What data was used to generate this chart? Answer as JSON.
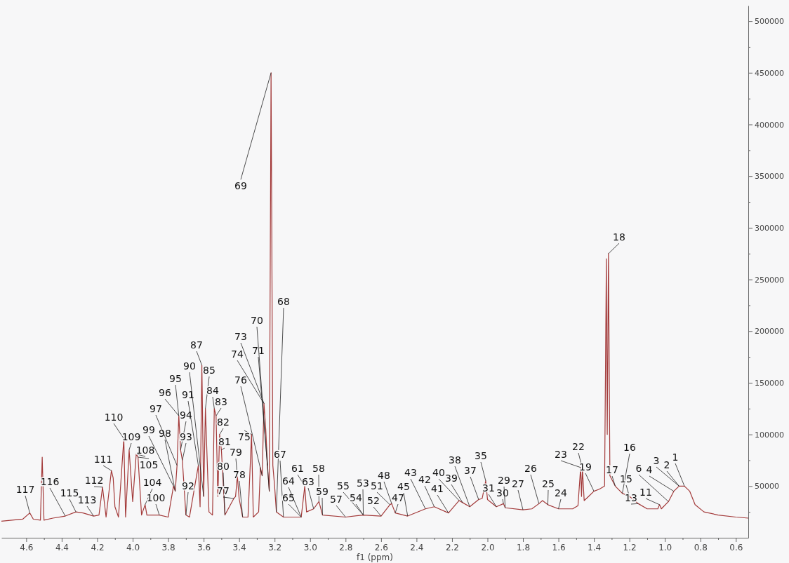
{
  "chart_data": {
    "type": "line",
    "xlabel": "f1 (ppm)",
    "grid": false,
    "marker": "none",
    "line_style": "solid",
    "xlim": [
      4.74,
      0.53
    ],
    "ylim": [
      0,
      515000
    ],
    "xticks": [
      4.6,
      {
        "value": 4.5,
        "label": null
      },
      4.4,
      {
        "value": 4.3,
        "label": null
      },
      4.2,
      {
        "value": 4.1,
        "label": null
      },
      {
        "value": 4,
        "label": "4.0"
      },
      {
        "value": 3.9,
        "label": null
      },
      3.8,
      {
        "value": 3.7,
        "label": null
      },
      3.6,
      {
        "value": 3.5,
        "label": null
      },
      3.4,
      {
        "value": 3.3,
        "label": null
      },
      3.2,
      {
        "value": 3.1,
        "label": null
      },
      {
        "value": 3,
        "label": "3.0"
      },
      {
        "value": 2.9,
        "label": null
      },
      2.8,
      {
        "value": 2.7,
        "label": null
      },
      2.6,
      {
        "value": 2.5,
        "label": null
      },
      2.4,
      {
        "value": 2.3,
        "label": null
      },
      2.2,
      {
        "value": 2.1,
        "label": null
      },
      {
        "value": 2,
        "label": "2.0"
      },
      {
        "value": 1.9,
        "label": null
      },
      1.8,
      {
        "value": 1.7,
        "label": null
      },
      1.6,
      {
        "value": 1.5,
        "label": null
      },
      1.4,
      {
        "value": 1.3,
        "label": null
      },
      1.2,
      {
        "value": 1.1,
        "label": null
      },
      {
        "value": 1,
        "label": "1.0"
      },
      {
        "value": 0.9,
        "label": null
      },
      0.8,
      {
        "value": 0.7,
        "label": null
      },
      0.6
    ],
    "yticks": [
      {
        "value": 25000,
        "label": null
      },
      50000,
      {
        "value": 75000,
        "label": null
      },
      100000,
      {
        "value": 125000,
        "label": null
      },
      150000,
      {
        "value": 175000,
        "label": null
      },
      200000,
      {
        "value": 225000,
        "label": null
      },
      250000,
      {
        "value": 275000,
        "label": null
      },
      300000,
      {
        "value": 325000,
        "label": null
      },
      350000,
      {
        "value": 375000,
        "label": null
      },
      400000,
      {
        "value": 425000,
        "label": null
      },
      450000,
      {
        "value": 475000,
        "label": null
      },
      500000
    ],
    "series": [
      {
        "color": "#a33a3a",
        "x": [
          4.74,
          4.62,
          4.58,
          4.56,
          4.52,
          4.51,
          4.5,
          4.45,
          4.38,
          4.32,
          4.28,
          4.22,
          4.19,
          4.17,
          4.15,
          4.12,
          4.11,
          4.1,
          4.08,
          4.05,
          4.04,
          4.02,
          4.0,
          3.98,
          3.97,
          3.95,
          3.93,
          3.92,
          3.85,
          3.8,
          3.77,
          3.76,
          3.75,
          3.74,
          3.73,
          3.72,
          3.7,
          3.68,
          3.63,
          3.62,
          3.61,
          3.6,
          3.59,
          3.57,
          3.55,
          3.54,
          3.53,
          3.52,
          3.51,
          3.5,
          3.48,
          3.43,
          3.42,
          3.41,
          3.4,
          3.38,
          3.35,
          3.33,
          3.32,
          3.29,
          3.28,
          3.27,
          3.26,
          3.25,
          3.24,
          3.23,
          3.22,
          3.21,
          3.2,
          3.19,
          3.15,
          3.05,
          3.03,
          3.02,
          2.98,
          2.95,
          2.93,
          2.8,
          2.7,
          2.6,
          2.55,
          2.54,
          2.52,
          2.45,
          2.35,
          2.3,
          2.22,
          2.16,
          2.14,
          2.1,
          2.05,
          2.03,
          2.01,
          2.0,
          1.95,
          1.91,
          1.9,
          1.8,
          1.75,
          1.71,
          1.69,
          1.66,
          1.6,
          1.52,
          1.49,
          1.475,
          1.47,
          1.465,
          1.455,
          1.43,
          1.4,
          1.37,
          1.34,
          1.33,
          1.325,
          1.318,
          1.31,
          1.28,
          1.24,
          1.2,
          1.15,
          1.1,
          1.04,
          1.03,
          1.02,
          0.98,
          0.95,
          0.92,
          0.89,
          0.86,
          0.83,
          0.78,
          0.7,
          0.6,
          0.53
        ],
        "values": [
          16000,
          18000,
          24000,
          18000,
          17000,
          78000,
          17000,
          19000,
          21000,
          25000,
          24000,
          21000,
          22000,
          49000,
          20000,
          65000,
          58000,
          30000,
          20000,
          96000,
          20000,
          85000,
          35000,
          81000,
          78000,
          22000,
          32000,
          22000,
          22000,
          20000,
          50000,
          45000,
          70000,
          118000,
          85000,
          75000,
          22000,
          20000,
          70000,
          30000,
          167000,
          40000,
          125000,
          25000,
          22000,
          125000,
          118000,
          40000,
          100000,
          85000,
          22000,
          38000,
          40000,
          60000,
          38000,
          20000,
          20000,
          100000,
          20000,
          25000,
          68000,
          60000,
          130000,
          105000,
          70000,
          45000,
          450000,
          70000,
          50000,
          25000,
          20000,
          20000,
          50000,
          25000,
          28000,
          35000,
          22000,
          20000,
          22000,
          21000,
          32000,
          33000,
          24000,
          21000,
          28000,
          30000,
          24000,
          36000,
          34000,
          30000,
          37000,
          38000,
          55000,
          37000,
          30000,
          33000,
          29000,
          27000,
          28000,
          33000,
          36000,
          32000,
          28000,
          28000,
          31000,
          68000,
          40000,
          67000,
          36000,
          40000,
          45000,
          47000,
          50000,
          270000,
          100000,
          275000,
          60000,
          50000,
          43000,
          40000,
          33000,
          28000,
          28000,
          32000,
          28000,
          35000,
          45000,
          50000,
          50000,
          45000,
          32000,
          25000,
          22000,
          20000,
          19000
        ]
      }
    ],
    "annotations": [
      {
        "text": "117",
        "x": 4.58,
        "y": 24000
      },
      {
        "text": "116",
        "x": 4.38,
        "y": 21000
      },
      {
        "text": "115",
        "x": 4.32,
        "y": 25000
      },
      {
        "text": "113",
        "x": 4.22,
        "y": 21000
      },
      {
        "text": "112",
        "x": 4.17,
        "y": 49000
      },
      {
        "text": "111",
        "x": 4.12,
        "y": 65000
      },
      {
        "text": "110",
        "x": 4.05,
        "y": 96000
      },
      {
        "text": "109",
        "x": 4.02,
        "y": 85000
      },
      {
        "text": "108",
        "x": 3.98,
        "y": 81000
      },
      {
        "text": "105",
        "x": 3.97,
        "y": 78000
      },
      {
        "text": "104",
        "x": 3.93,
        "y": 32000
      },
      {
        "text": "100",
        "x": 3.85,
        "y": 22000
      },
      {
        "text": "99",
        "x": 3.77,
        "y": 50000
      },
      {
        "text": "98",
        "x": 3.76,
        "y": 45000
      },
      {
        "text": "97",
        "x": 3.75,
        "y": 70000
      },
      {
        "text": "96",
        "x": 3.74,
        "y": 118000
      },
      {
        "text": "95",
        "x": 3.74,
        "y": 118000
      },
      {
        "text": "94",
        "x": 3.73,
        "y": 85000
      },
      {
        "text": "93",
        "x": 3.72,
        "y": 75000
      },
      {
        "text": "92",
        "x": 3.7,
        "y": 22000
      },
      {
        "text": "91",
        "x": 3.63,
        "y": 70000
      },
      {
        "text": "90",
        "x": 3.6,
        "y": 40000
      },
      {
        "text": "87",
        "x": 3.61,
        "y": 167000
      },
      {
        "text": "85",
        "x": 3.59,
        "y": 125000
      },
      {
        "text": "84",
        "x": 3.54,
        "y": 125000
      },
      {
        "text": "83",
        "x": 3.53,
        "y": 118000
      },
      {
        "text": "82",
        "x": 3.51,
        "y": 100000
      },
      {
        "text": "81",
        "x": 3.5,
        "y": 85000
      },
      {
        "text": "80",
        "x": 3.48,
        "y": 22000
      },
      {
        "text": "79",
        "x": 3.41,
        "y": 60000
      },
      {
        "text": "78",
        "x": 3.38,
        "y": 20000
      },
      {
        "text": "77",
        "x": 3.43,
        "y": 38000
      },
      {
        "text": "75",
        "x": 3.33,
        "y": 100000
      },
      {
        "text": "76",
        "x": 3.27,
        "y": 60000
      },
      {
        "text": "74",
        "x": 3.26,
        "y": 130000
      },
      {
        "text": "73",
        "x": 3.26,
        "y": 130000
      },
      {
        "text": "71",
        "x": 3.24,
        "y": 70000
      },
      {
        "text": "70",
        "x": 3.23,
        "y": 45000
      },
      {
        "text": "69",
        "x": 3.22,
        "y": 450000
      },
      {
        "text": "68",
        "x": 3.19,
        "y": 25000
      },
      {
        "text": "67",
        "x": 3.15,
        "y": 20000
      },
      {
        "text": "65",
        "x": 3.05,
        "y": 20000
      },
      {
        "text": "64",
        "x": 3.05,
        "y": 20000
      },
      {
        "text": "61",
        "x": 3.03,
        "y": 50000
      },
      {
        "text": "63",
        "x": 2.98,
        "y": 28000
      },
      {
        "text": "58",
        "x": 2.95,
        "y": 35000
      },
      {
        "text": "59",
        "x": 2.93,
        "y": 22000
      },
      {
        "text": "57",
        "x": 2.8,
        "y": 20000
      },
      {
        "text": "55",
        "x": 2.7,
        "y": 22000
      },
      {
        "text": "54",
        "x": 2.7,
        "y": 22000
      },
      {
        "text": "53",
        "x": 2.7,
        "y": 22000
      },
      {
        "text": "52",
        "x": 2.6,
        "y": 21000
      },
      {
        "text": "51",
        "x": 2.55,
        "y": 32000
      },
      {
        "text": "48",
        "x": 2.54,
        "y": 33000
      },
      {
        "text": "47",
        "x": 2.52,
        "y": 24000
      },
      {
        "text": "45",
        "x": 2.45,
        "y": 21000
      },
      {
        "text": "43",
        "x": 2.35,
        "y": 28000
      },
      {
        "text": "42",
        "x": 2.3,
        "y": 30000
      },
      {
        "text": "41",
        "x": 2.22,
        "y": 24000
      },
      {
        "text": "40",
        "x": 2.16,
        "y": 36000
      },
      {
        "text": "39",
        "x": 2.14,
        "y": 34000
      },
      {
        "text": "38",
        "x": 2.1,
        "y": 30000
      },
      {
        "text": "37",
        "x": 2.05,
        "y": 37000
      },
      {
        "text": "35",
        "x": 2.01,
        "y": 55000
      },
      {
        "text": "31",
        "x": 1.95,
        "y": 30000
      },
      {
        "text": "30",
        "x": 1.91,
        "y": 33000
      },
      {
        "text": "29",
        "x": 1.9,
        "y": 29000
      },
      {
        "text": "27",
        "x": 1.8,
        "y": 27000
      },
      {
        "text": "26",
        "x": 1.71,
        "y": 33000
      },
      {
        "text": "25",
        "x": 1.66,
        "y": 32000
      },
      {
        "text": "24",
        "x": 1.6,
        "y": 28000
      },
      {
        "text": "23",
        "x": 1.475,
        "y": 68000
      },
      {
        "text": "22",
        "x": 1.465,
        "y": 67000
      },
      {
        "text": "19",
        "x": 1.4,
        "y": 45000
      },
      {
        "text": "18",
        "x": 1.318,
        "y": 275000
      },
      {
        "text": "17",
        "x": 1.28,
        "y": 50000
      },
      {
        "text": "16",
        "x": 1.24,
        "y": 43000
      },
      {
        "text": "15",
        "x": 1.2,
        "y": 40000
      },
      {
        "text": "13",
        "x": 1.15,
        "y": 33000
      },
      {
        "text": "11",
        "x": 1.03,
        "y": 32000
      },
      {
        "text": "6",
        "x": 0.98,
        "y": 35000
      },
      {
        "text": "4",
        "x": 0.95,
        "y": 45000
      },
      {
        "text": "3",
        "x": 0.92,
        "y": 50000
      },
      {
        "text": "2",
        "x": 0.92,
        "y": 50000
      },
      {
        "text": "1",
        "x": 0.89,
        "y": 50000
      }
    ]
  }
}
